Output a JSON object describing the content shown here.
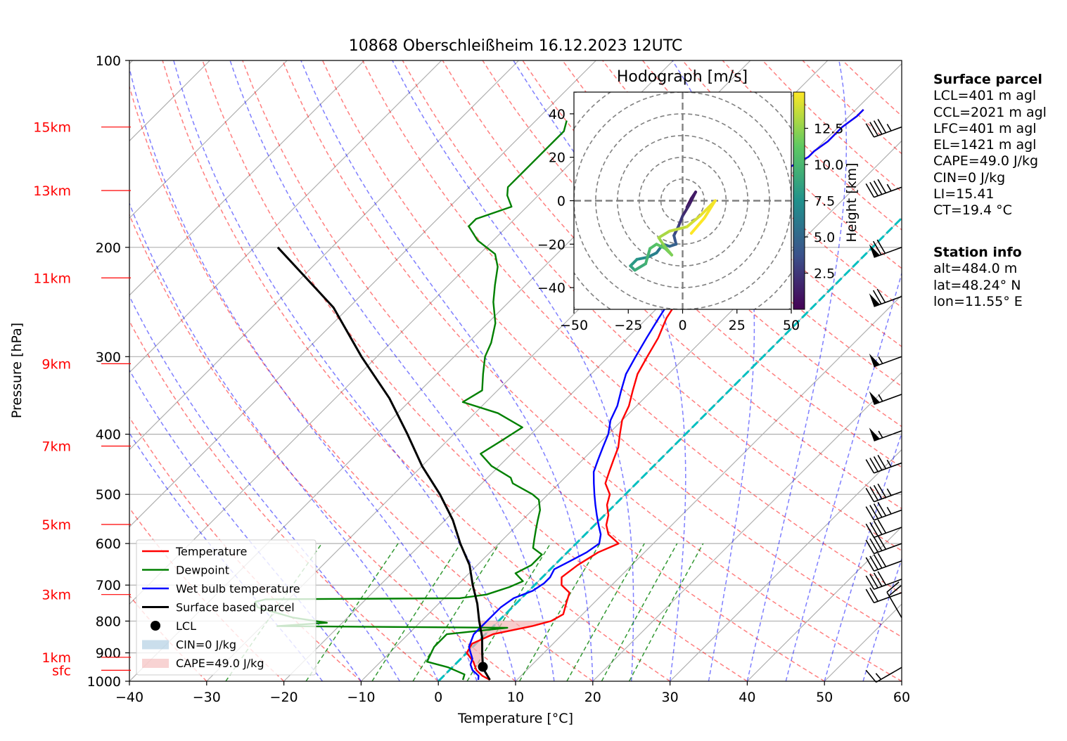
{
  "chart_data": {
    "type": "skew-t",
    "title": "10868 Oberschleißheim 16.12.2023 12UTC",
    "xlabel": "Temperature [°C]",
    "ylabel": "Pressure [hPa]",
    "xlim": [
      -40,
      60
    ],
    "ylim": [
      1000,
      100
    ],
    "x_ticks": [
      "−40",
      "−30",
      "−20",
      "−10",
      "0",
      "10",
      "20",
      "30",
      "40",
      "50",
      "60"
    ],
    "y_ticks": [
      "100",
      "200",
      "300",
      "400",
      "500",
      "600",
      "700",
      "800",
      "900",
      "1000"
    ],
    "height_labels": [
      {
        "label": "15km",
        "p": 128
      },
      {
        "label": "13km",
        "p": 162
      },
      {
        "label": "11km",
        "p": 224
      },
      {
        "label": "9km",
        "p": 308
      },
      {
        "label": "7km",
        "p": 418
      },
      {
        "label": "5km",
        "p": 559
      },
      {
        "label": "3km",
        "p": 725
      },
      {
        "label": "1km",
        "p": 915
      },
      {
        "label": "sfc",
        "p": 960
      }
    ],
    "series": [
      {
        "name": "Temperature",
        "color": "#ff0000",
        "points": [
          [
            6.5,
            995
          ],
          [
            5,
            980
          ],
          [
            3.5,
            960
          ],
          [
            2,
            930
          ],
          [
            0,
            900
          ],
          [
            -0.5,
            870
          ],
          [
            1,
            840
          ],
          [
            5,
            815
          ],
          [
            6.8,
            800
          ],
          [
            7.5,
            780
          ],
          [
            6.5,
            750
          ],
          [
            5.5,
            720
          ],
          [
            3.5,
            700
          ],
          [
            2.5,
            680
          ],
          [
            3,
            650
          ],
          [
            4,
            620
          ],
          [
            5.5,
            600
          ],
          [
            3,
            580
          ],
          [
            1.5,
            560
          ],
          [
            0.5,
            540
          ],
          [
            -1,
            520
          ],
          [
            -2,
            500
          ],
          [
            -4,
            480
          ],
          [
            -5,
            460
          ],
          [
            -6,
            440
          ],
          [
            -7,
            420
          ],
          [
            -8.5,
            400
          ],
          [
            -10,
            380
          ],
          [
            -11,
            360
          ],
          [
            -12.5,
            340
          ],
          [
            -14,
            320
          ],
          [
            -15,
            300
          ],
          [
            -16,
            280
          ],
          [
            -17.5,
            260
          ],
          [
            -18.5,
            240
          ],
          [
            -20,
            220
          ],
          [
            -21,
            205
          ],
          [
            -22.5,
            195
          ],
          [
            -24,
            185
          ],
          [
            -26,
            178
          ],
          [
            -27,
            170
          ],
          [
            -27.5,
            165
          ],
          [
            -26.5,
            160
          ],
          [
            -24.5,
            155
          ],
          [
            -21,
            148
          ],
          [
            -20,
            143
          ],
          [
            -20,
            140
          ],
          [
            -19.5,
            135
          ],
          [
            -19.5,
            128
          ],
          [
            -19,
            123
          ],
          [
            -19,
            120
          ]
        ]
      },
      {
        "name": "Dewpoint",
        "color": "#008000",
        "points": [
          [
            3,
            995
          ],
          [
            2.5,
            975
          ],
          [
            -0.5,
            950
          ],
          [
            -4,
            930
          ],
          [
            -5,
            880
          ],
          [
            -5,
            840
          ],
          [
            2,
            820
          ],
          [
            -28,
            815
          ],
          [
            -22,
            805
          ],
          [
            -27,
            790
          ],
          [
            -33,
            760
          ],
          [
            -34,
            745
          ],
          [
            -33,
            738
          ],
          [
            -8,
            735
          ],
          [
            -5,
            725
          ],
          [
            -3,
            705
          ],
          [
            -2,
            690
          ],
          [
            -4,
            670
          ],
          [
            -3,
            650
          ],
          [
            -3,
            625
          ],
          [
            -5,
            610
          ],
          [
            -6,
            590
          ],
          [
            -7,
            570
          ],
          [
            -8,
            550
          ],
          [
            -9,
            530
          ],
          [
            -10.5,
            510
          ],
          [
            -12,
            500
          ],
          [
            -16,
            480
          ],
          [
            -17,
            470
          ],
          [
            -21,
            450
          ],
          [
            -24,
            430
          ],
          [
            -23,
            410
          ],
          [
            -22,
            390
          ],
          [
            -27,
            370
          ],
          [
            -33,
            355
          ],
          [
            -32,
            340
          ],
          [
            -34,
            320
          ],
          [
            -36,
            300
          ],
          [
            -37,
            285
          ],
          [
            -39,
            265
          ],
          [
            -42,
            245
          ],
          [
            -44,
            230
          ],
          [
            -46,
            215
          ],
          [
            -48,
            205
          ],
          [
            -52,
            195
          ],
          [
            -55,
            185
          ],
          [
            -55,
            180
          ],
          [
            -52,
            172
          ],
          [
            -54,
            165
          ],
          [
            -55,
            160
          ],
          [
            -55,
            150
          ],
          [
            -55,
            140
          ],
          [
            -55,
            130
          ],
          [
            -56,
            125
          ]
        ]
      },
      {
        "name": "Wet bulb temperature",
        "color": "#0000ff",
        "points": [
          [
            5,
            995
          ],
          [
            4.5,
            980
          ],
          [
            3,
            960
          ],
          [
            2,
            940
          ],
          [
            1.5,
            920
          ],
          [
            0.5,
            900
          ],
          [
            -0.5,
            880
          ],
          [
            -1,
            860
          ],
          [
            -1.5,
            840
          ],
          [
            -1.5,
            800
          ],
          [
            -1.5,
            760
          ],
          [
            -1,
            735
          ],
          [
            0.5,
            715
          ],
          [
            1,
            695
          ],
          [
            1,
            680
          ],
          [
            0.5,
            660
          ],
          [
            1.5,
            640
          ],
          [
            2.5,
            620
          ],
          [
            3,
            600
          ],
          [
            2,
            580
          ],
          [
            0.5,
            560
          ],
          [
            -1,
            540
          ],
          [
            -2.5,
            520
          ],
          [
            -4,
            500
          ],
          [
            -5.5,
            480
          ],
          [
            -7,
            460
          ],
          [
            -8,
            440
          ],
          [
            -9,
            420
          ],
          [
            -10,
            400
          ],
          [
            -11.5,
            380
          ],
          [
            -12.5,
            360
          ],
          [
            -14,
            340
          ],
          [
            -15.5,
            320
          ],
          [
            -16.5,
            300
          ],
          [
            -17.5,
            280
          ],
          [
            -18.5,
            260
          ],
          [
            -19.5,
            240
          ],
          [
            -20.5,
            220
          ],
          [
            -21.5,
            205
          ],
          [
            -22.5,
            195
          ],
          [
            -24,
            185
          ],
          [
            -26,
            178
          ],
          [
            -27,
            170
          ],
          [
            -27.5,
            165
          ],
          [
            -26.5,
            160
          ],
          [
            -24.5,
            155
          ],
          [
            -21,
            148
          ],
          [
            -20,
            143
          ],
          [
            -20,
            140
          ],
          [
            -19.5,
            135
          ],
          [
            -19.5,
            128
          ],
          [
            -19,
            123
          ],
          [
            -19,
            120
          ]
        ]
      },
      {
        "name": "Surface based parcel",
        "color": "#000000",
        "points": [
          [
            6.5,
            995
          ],
          [
            4.5,
            960
          ],
          [
            3.9,
            948
          ],
          [
            2,
            900
          ],
          [
            0,
            850
          ],
          [
            -2.5,
            800
          ],
          [
            -5,
            750
          ],
          [
            -8,
            700
          ],
          [
            -11,
            650
          ],
          [
            -15,
            600
          ],
          [
            -19,
            550
          ],
          [
            -24,
            500
          ],
          [
            -30,
            450
          ],
          [
            -36,
            400
          ],
          [
            -43,
            350
          ],
          [
            -52,
            300
          ],
          [
            -62,
            250
          ],
          [
            -77,
            200
          ]
        ]
      }
    ],
    "lcl": {
      "name": "LCL",
      "T": 3.9,
      "p": 948
    },
    "cin_label": "CIN=0 J/kg",
    "cape_label": "CAPE=49.0 J/kg",
    "freezing_level_color": "#00bfbf",
    "hodograph": {
      "title": "Hodograph [m/s]",
      "xlim": [
        -50,
        50
      ],
      "ylim": [
        -50,
        50
      ],
      "x_ticks": [
        "−50",
        "−25",
        "0",
        "25",
        "50"
      ],
      "y_ticks": [
        "40",
        "20",
        "0",
        "−20",
        "−40"
      ],
      "colorbar_label": "Height [km]",
      "colorbar_ticks": [
        "2.5",
        "5.0",
        "7.5",
        "10.0",
        "12.5"
      ],
      "colorbar_range": [
        0,
        15
      ],
      "points": [
        [
          2,
          -3,
          0.2
        ],
        [
          4,
          1,
          0.5
        ],
        [
          6,
          4,
          0.8
        ],
        [
          3,
          -2,
          1.2
        ],
        [
          0,
          -7,
          1.8
        ],
        [
          -2,
          -12,
          2.5
        ],
        [
          -4,
          -16,
          3.2
        ],
        [
          -3,
          -20,
          4.0
        ],
        [
          -6,
          -21,
          4.6
        ],
        [
          -9,
          -20,
          5.2
        ],
        [
          -12,
          -24,
          5.8
        ],
        [
          -16,
          -26,
          6.5
        ],
        [
          -21,
          -27,
          7.2
        ],
        [
          -24,
          -30,
          8.0
        ],
        [
          -22,
          -32,
          8.6
        ],
        [
          -17,
          -29,
          9.2
        ],
        [
          -15,
          -22,
          9.8
        ],
        [
          -12,
          -20,
          10.5
        ],
        [
          -8,
          -22,
          11.0
        ],
        [
          -5,
          -25,
          11.5
        ],
        [
          -9,
          -20,
          12.0
        ],
        [
          -11,
          -17,
          12.5
        ],
        [
          -6,
          -14,
          13.0
        ],
        [
          2,
          -12,
          13.5
        ],
        [
          8,
          -7,
          14.0
        ],
        [
          15,
          0,
          14.5
        ],
        [
          10,
          -8,
          14.8
        ],
        [
          4,
          -15,
          15.0
        ]
      ]
    },
    "wind_barbs": [
      {
        "p": 128,
        "spd_kt": 45,
        "dir": 250
      },
      {
        "p": 160,
        "spd_kt": 45,
        "dir": 250
      },
      {
        "p": 200,
        "spd_kt": 70,
        "dir": 250
      },
      {
        "p": 240,
        "spd_kt": 70,
        "dir": 250
      },
      {
        "p": 300,
        "spd_kt": 55,
        "dir": 250
      },
      {
        "p": 345,
        "spd_kt": 55,
        "dir": 250
      },
      {
        "p": 395,
        "spd_kt": 55,
        "dir": 250
      },
      {
        "p": 445,
        "spd_kt": 45,
        "dir": 250
      },
      {
        "p": 495,
        "spd_kt": 45,
        "dir": 250
      },
      {
        "p": 530,
        "spd_kt": 45,
        "dir": 250
      },
      {
        "p": 565,
        "spd_kt": 40,
        "dir": 250
      },
      {
        "p": 600,
        "spd_kt": 40,
        "dir": 250
      },
      {
        "p": 640,
        "spd_kt": 40,
        "dir": 250
      },
      {
        "p": 685,
        "spd_kt": 40,
        "dir": 250
      },
      {
        "p": 720,
        "spd_kt": 20,
        "dir": 250
      },
      {
        "p": 790,
        "spd_kt": 20,
        "dir": 330
      },
      {
        "p": 950,
        "spd_kt": 15,
        "dir": 240
      }
    ]
  },
  "surface_parcel": {
    "heading": "Surface parcel",
    "lines": [
      "LCL=401 m agl",
      "CCL=2021 m agl",
      "LFC=401 m agl",
      "EL=1421 m agl",
      "CAPE=49.0 J/kg",
      "CIN=0 J/kg",
      "LI=15.41",
      "CT=19.4 °C"
    ]
  },
  "station_info": {
    "heading": "Station info",
    "lines": [
      "alt=484.0 m",
      "lat=48.24° N",
      "lon=11.55° E"
    ]
  }
}
